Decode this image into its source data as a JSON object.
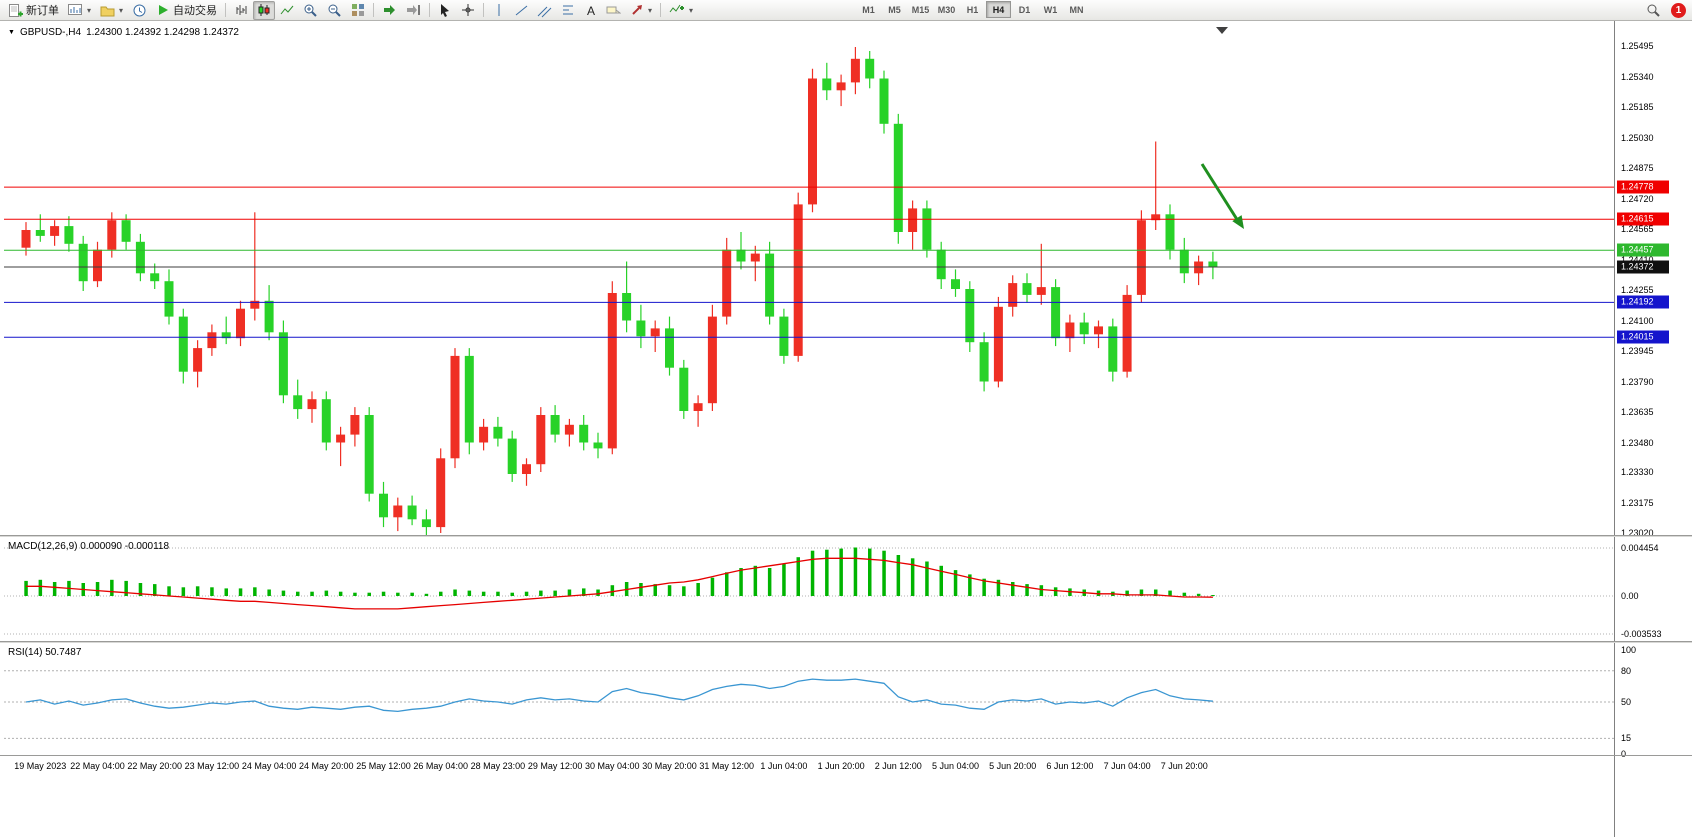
{
  "toolbar": {
    "new_order_label": "新订单",
    "autotrading_label": "自动交易",
    "timeframes": [
      "M1",
      "M5",
      "M15",
      "M30",
      "H1",
      "H4",
      "D1",
      "W1",
      "MN"
    ],
    "active_timeframe": "H4",
    "notification_count": "1",
    "icons": [
      "new-order-icon",
      "new-chart-icon",
      "profiles-icon",
      "history-clock-icon",
      "autotrading-icon",
      "bar-chart-icon",
      "candlestick-chart-icon",
      "line-chart-icon",
      "zoom-in-icon",
      "zoom-out-icon",
      "tile-windows-icon",
      "auto-scroll-icon",
      "chart-shift-icon",
      "cursor-icon",
      "crosshair-icon",
      "vertical-line-icon",
      "trendline-icon",
      "channel-icon",
      "fibonacci-icon",
      "text-icon",
      "text-label-icon",
      "indicators-icon",
      "search-icon"
    ]
  },
  "chart": {
    "symbol_label": "GBPUSD-,H4",
    "ohlc_label": "1.24300 1.24392 1.24298 1.24372"
  },
  "chart_data": {
    "type": "candlestick",
    "symbol": "GBPUSD-",
    "timeframe": "H4",
    "ohlc_current": {
      "open": 1.243,
      "high": 1.24392,
      "low": 1.24298,
      "close": 1.24372
    },
    "bull_color": "#ef2f24",
    "bear_color": "#28d228",
    "price_axis": {
      "range": [
        1.2301,
        1.25607
      ],
      "labels": [
        "1.25495",
        "1.25340",
        "1.25185",
        "1.25030",
        "1.24875",
        "1.24720",
        "1.24565",
        "1.24410",
        "1.24255",
        "1.24100",
        "1.23945",
        "1.23790",
        "1.23635",
        "1.23480",
        "1.23330",
        "1.23175",
        "1.23020"
      ]
    },
    "levels": [
      {
        "price": 1.24778,
        "label": "1.24778",
        "color": "#f00000",
        "current": false
      },
      {
        "price": 1.24615,
        "label": "1.24615",
        "color": "#f00000",
        "current": false
      },
      {
        "price": 1.24457,
        "label": "1.24457",
        "color": "#2eb82e",
        "current": false
      },
      {
        "price": 1.24372,
        "label": "1.24372",
        "color": "#3c3c3c",
        "current": true
      },
      {
        "price": 1.24192,
        "label": "1.24192",
        "color": "#1414cc",
        "current": false
      },
      {
        "price": 1.24015,
        "label": "1.24015",
        "color": "#1414cc",
        "current": false
      }
    ],
    "annotations": [
      {
        "type": "arrow",
        "direction": "down-right",
        "color": "#1f8f1f"
      }
    ],
    "time_labels": [
      "19 May 2023",
      "22 May 04:00",
      "22 May 20:00",
      "23 May 12:00",
      "24 May 04:00",
      "24 May 20:00",
      "25 May 12:00",
      "26 May 04:00",
      "28 May 23:00",
      "29 May 12:00",
      "30 May 04:00",
      "30 May 20:00",
      "31 May 12:00",
      "1 Jun 04:00",
      "1 Jun 20:00",
      "2 Jun 12:00",
      "5 Jun 04:00",
      "5 Jun 20:00",
      "6 Jun 12:00",
      "7 Jun 04:00",
      "7 Jun 20:00"
    ],
    "candles": [
      [
        1.2447,
        1.246,
        1.2443,
        1.2456
      ],
      [
        1.2456,
        1.2464,
        1.245,
        1.2453
      ],
      [
        1.2453,
        1.2461,
        1.2448,
        1.2458
      ],
      [
        1.2458,
        1.2463,
        1.2445,
        1.2449
      ],
      [
        1.2449,
        1.2453,
        1.2425,
        1.243
      ],
      [
        1.243,
        1.245,
        1.2427,
        1.2446
      ],
      [
        1.2446,
        1.2465,
        1.2442,
        1.2461
      ],
      [
        1.2461,
        1.2464,
        1.2446,
        1.245
      ],
      [
        1.245,
        1.2454,
        1.243,
        1.2434
      ],
      [
        1.2434,
        1.2439,
        1.2426,
        1.243
      ],
      [
        1.243,
        1.2436,
        1.2408,
        1.2412
      ],
      [
        1.2412,
        1.2416,
        1.2378,
        1.2384
      ],
      [
        1.2384,
        1.24,
        1.2376,
        1.2396
      ],
      [
        1.2396,
        1.2408,
        1.2392,
        1.2404
      ],
      [
        1.2404,
        1.2412,
        1.2398,
        1.2401
      ],
      [
        1.2401,
        1.242,
        1.2397,
        1.2416
      ],
      [
        1.2416,
        1.2465,
        1.241,
        1.242
      ],
      [
        1.242,
        1.2428,
        1.24,
        1.2404
      ],
      [
        1.2404,
        1.241,
        1.2368,
        1.2372
      ],
      [
        1.2372,
        1.238,
        1.236,
        1.2365
      ],
      [
        1.2365,
        1.2374,
        1.2358,
        1.237
      ],
      [
        1.237,
        1.2374,
        1.2344,
        1.2348
      ],
      [
        1.2348,
        1.2356,
        1.2336,
        1.2352
      ],
      [
        1.2352,
        1.2366,
        1.2346,
        1.2362
      ],
      [
        1.2362,
        1.2366,
        1.2318,
        1.2322
      ],
      [
        1.2322,
        1.2328,
        1.2305,
        1.231
      ],
      [
        1.231,
        1.232,
        1.2303,
        1.2316
      ],
      [
        1.2316,
        1.2321,
        1.2306,
        1.2309
      ],
      [
        1.2309,
        1.2314,
        1.23,
        1.2305
      ],
      [
        1.2305,
        1.2345,
        1.2302,
        1.234
      ],
      [
        1.234,
        1.2396,
        1.2335,
        1.2392
      ],
      [
        1.2392,
        1.2396,
        1.2342,
        1.2348
      ],
      [
        1.2348,
        1.236,
        1.2344,
        1.2356
      ],
      [
        1.2356,
        1.2361,
        1.2346,
        1.235
      ],
      [
        1.235,
        1.2354,
        1.2328,
        1.2332
      ],
      [
        1.2332,
        1.234,
        1.2326,
        1.2337
      ],
      [
        1.2337,
        1.2366,
        1.2333,
        1.2362
      ],
      [
        1.2362,
        1.2367,
        1.2348,
        1.2352
      ],
      [
        1.2352,
        1.236,
        1.2346,
        1.2357
      ],
      [
        1.2357,
        1.2362,
        1.2344,
        1.2348
      ],
      [
        1.2348,
        1.2353,
        1.234,
        1.2345
      ],
      [
        1.2345,
        1.243,
        1.2342,
        1.2424
      ],
      [
        1.2424,
        1.244,
        1.2404,
        1.241
      ],
      [
        1.241,
        1.2418,
        1.2396,
        1.2402
      ],
      [
        1.2402,
        1.241,
        1.2394,
        1.2406
      ],
      [
        1.2406,
        1.2412,
        1.2382,
        1.2386
      ],
      [
        1.2386,
        1.239,
        1.236,
        1.2364
      ],
      [
        1.2364,
        1.2372,
        1.2356,
        1.2368
      ],
      [
        1.2368,
        1.2418,
        1.2364,
        1.2412
      ],
      [
        1.2412,
        1.2452,
        1.2408,
        1.2446
      ],
      [
        1.2446,
        1.2455,
        1.2436,
        1.244
      ],
      [
        1.244,
        1.2448,
        1.243,
        1.2444
      ],
      [
        1.2444,
        1.245,
        1.2408,
        1.2412
      ],
      [
        1.2412,
        1.2416,
        1.2388,
        1.2392
      ],
      [
        1.2392,
        1.2475,
        1.2389,
        1.2469
      ],
      [
        1.2469,
        1.2538,
        1.2465,
        1.2533
      ],
      [
        1.2533,
        1.2541,
        1.2522,
        1.2527
      ],
      [
        1.2527,
        1.2535,
        1.2519,
        1.2531
      ],
      [
        1.2531,
        1.2549,
        1.2525,
        1.2543
      ],
      [
        1.2543,
        1.2547,
        1.2528,
        1.2533
      ],
      [
        1.2533,
        1.2537,
        1.2505,
        1.251
      ],
      [
        1.251,
        1.2515,
        1.2449,
        1.2455
      ],
      [
        1.2455,
        1.2471,
        1.2446,
        1.2467
      ],
      [
        1.2467,
        1.2471,
        1.2442,
        1.2446
      ],
      [
        1.2446,
        1.245,
        1.2426,
        1.2431
      ],
      [
        1.2431,
        1.2436,
        1.2422,
        1.2426
      ],
      [
        1.2426,
        1.243,
        1.2394,
        1.2399
      ],
      [
        1.2399,
        1.2404,
        1.2374,
        1.2379
      ],
      [
        1.2379,
        1.2422,
        1.2376,
        1.2417
      ],
      [
        1.2417,
        1.2433,
        1.2412,
        1.2429
      ],
      [
        1.2429,
        1.2434,
        1.2419,
        1.2423
      ],
      [
        1.2423,
        1.2449,
        1.2418,
        1.2427
      ],
      [
        1.2427,
        1.2431,
        1.2397,
        1.2401
      ],
      [
        1.2401,
        1.2413,
        1.2394,
        1.2409
      ],
      [
        1.2409,
        1.2414,
        1.2398,
        1.2403
      ],
      [
        1.2403,
        1.241,
        1.2396,
        1.2407
      ],
      [
        1.2407,
        1.2411,
        1.2379,
        1.2384
      ],
      [
        1.2384,
        1.2428,
        1.2381,
        1.2423
      ],
      [
        1.2423,
        1.2466,
        1.2419,
        1.2461
      ],
      [
        1.2461,
        1.2501,
        1.2456,
        1.2464
      ],
      [
        1.2464,
        1.2469,
        1.2441,
        1.2446
      ],
      [
        1.2446,
        1.2452,
        1.2429,
        1.2434
      ],
      [
        1.2434,
        1.2443,
        1.2428,
        1.244
      ],
      [
        1.244,
        1.2445,
        1.2431,
        1.24372
      ]
    ],
    "macd": {
      "name_label": "MACD(12,26,9) 0.000090 -0.000118",
      "current_macd": 9e-05,
      "current_signal": -0.000118,
      "max": 0.004454,
      "min": -0.003533,
      "axis_labels": [
        "0.004454",
        "0.00",
        "-0.003533"
      ],
      "hist_color": "#00b400",
      "signal_color": "#e60000",
      "hist": [
        0.0014,
        0.0015,
        0.0013,
        0.0014,
        0.0012,
        0.0013,
        0.0015,
        0.0014,
        0.0012,
        0.0011,
        0.0009,
        0.0008,
        0.0009,
        0.0008,
        0.0007,
        0.0007,
        0.0008,
        0.0006,
        0.0005,
        0.0004,
        0.0004,
        0.0005,
        0.0004,
        0.0003,
        0.0003,
        0.0004,
        0.0003,
        0.0003,
        0.0002,
        0.0004,
        0.0006,
        0.0005,
        0.0004,
        0.0004,
        0.0003,
        0.0004,
        0.0005,
        0.0005,
        0.0006,
        0.0007,
        0.0006,
        0.001,
        0.0013,
        0.0012,
        0.0011,
        0.001,
        0.0009,
        0.0012,
        0.0017,
        0.0022,
        0.0026,
        0.0028,
        0.0026,
        0.003,
        0.0036,
        0.0042,
        0.0043,
        0.0044,
        0.0045,
        0.0044,
        0.0042,
        0.0038,
        0.0035,
        0.0032,
        0.0028,
        0.0024,
        0.002,
        0.0016,
        0.0015,
        0.0013,
        0.0011,
        0.001,
        0.0008,
        0.0007,
        0.0006,
        0.0005,
        0.0004,
        0.0005,
        0.0006,
        0.0006,
        0.0005,
        0.0003,
        0.0002,
        9e-05
      ],
      "signal": [
        0.0009,
        0.0009,
        0.0008,
        0.0007,
        0.0006,
        0.0005,
        0.0004,
        0.0003,
        0.0002,
        0.0001,
        0.0,
        -0.0001,
        -0.0002,
        -0.0003,
        -0.0004,
        -0.0005,
        -0.0005,
        -0.0006,
        -0.0007,
        -0.0008,
        -0.0009,
        -0.001,
        -0.0011,
        -0.0012,
        -0.0012,
        -0.0012,
        -0.0012,
        -0.0011,
        -0.001,
        -0.0009,
        -0.0008,
        -0.0007,
        -0.0006,
        -0.0005,
        -0.0004,
        -0.0003,
        -0.0002,
        -0.0001,
        0.0,
        0.0001,
        0.0002,
        0.0004,
        0.0006,
        0.0008,
        0.001,
        0.0012,
        0.0013,
        0.0015,
        0.0018,
        0.0021,
        0.0024,
        0.0026,
        0.0028,
        0.003,
        0.0032,
        0.0034,
        0.0035,
        0.0035,
        0.0035,
        0.0034,
        0.0033,
        0.0031,
        0.0029,
        0.0026,
        0.0023,
        0.002,
        0.0017,
        0.0014,
        0.0012,
        0.001,
        0.0008,
        0.0006,
        0.0005,
        0.0004,
        0.0003,
        0.0002,
        0.0002,
        0.0001,
        0.0001,
        0.0001,
        0.0,
        -0.0001,
        -0.0001,
        -0.000118
      ]
    },
    "rsi": {
      "name_label": "RSI(14) 50.7487",
      "current": 50.7487,
      "line_color": "#3a96d2",
      "axis_labels": [
        "100",
        "80",
        "50",
        "15",
        "0"
      ],
      "levels": [
        80,
        50,
        15
      ],
      "values": [
        50,
        52,
        48,
        51,
        47,
        49,
        52,
        53,
        49,
        46,
        44,
        45,
        47,
        49,
        48,
        50,
        51,
        46,
        44,
        43,
        45,
        44,
        43,
        45,
        46,
        42,
        41,
        43,
        44,
        46,
        50,
        53,
        51,
        50,
        48,
        52,
        54,
        52,
        53,
        51,
        50,
        60,
        63,
        59,
        57,
        54,
        52,
        56,
        62,
        65,
        67,
        66,
        63,
        65,
        70,
        72,
        71,
        71,
        72,
        70,
        68,
        55,
        50,
        52,
        48,
        47,
        44,
        43,
        50,
        52,
        51,
        53,
        48,
        50,
        49,
        51,
        46,
        54,
        59,
        62,
        56,
        53,
        52,
        50.75
      ]
    }
  }
}
